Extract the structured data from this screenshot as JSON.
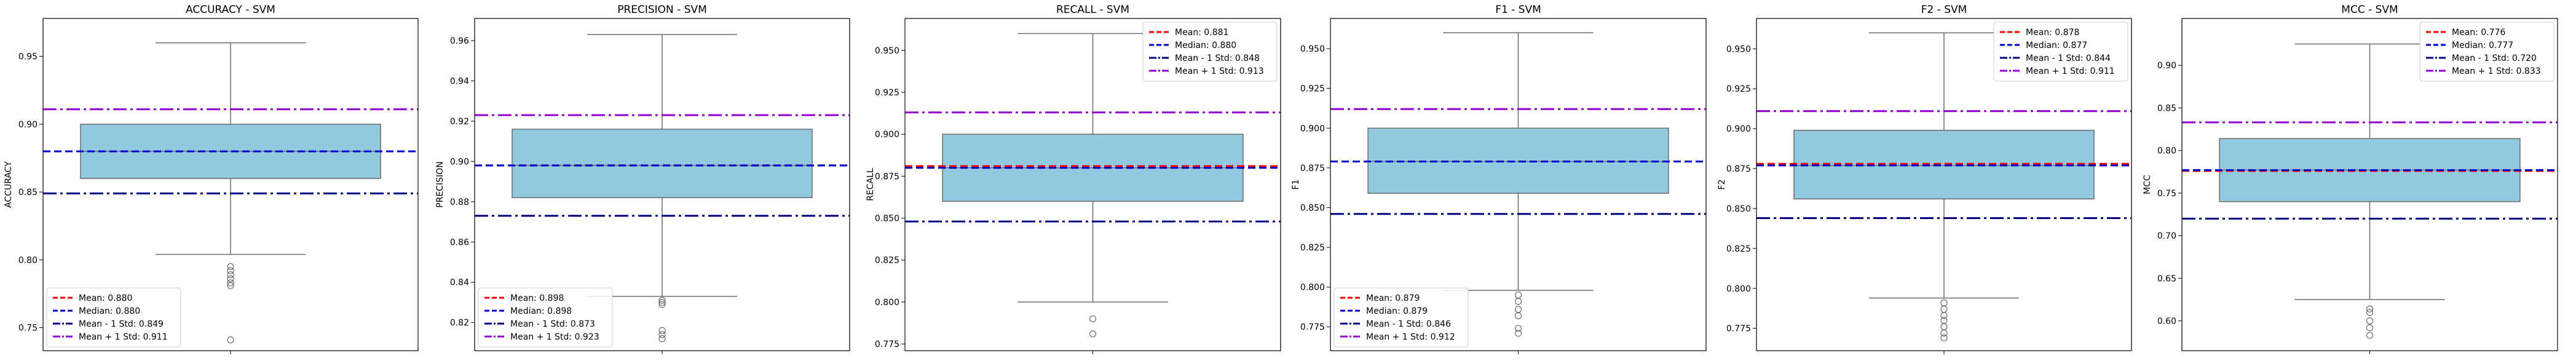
{
  "colors": {
    "box_fill": "#92c9e0",
    "box_edge": "#6b6b6b",
    "mean_line": "#ff0000",
    "median_line": "#0000cc",
    "minus_std_line": "#000080",
    "plus_std_line": "#9400d3",
    "axis": "#000000"
  },
  "chart_data": [
    {
      "type": "box",
      "title": "ACCURACY - SVM",
      "ylabel": "ACCURACY",
      "xlabel": "",
      "ylim": [
        0.733,
        0.978
      ],
      "yticks": [
        0.75,
        0.8,
        0.85,
        0.9,
        0.95
      ],
      "tick_labels": [
        "0.75",
        "0.80",
        "0.85",
        "0.90",
        "0.95"
      ],
      "box": {
        "whisker_low": 0.804,
        "q1": 0.86,
        "median": 0.88,
        "q3": 0.9,
        "whisker_high": 0.96
      },
      "outliers": [
        0.795,
        0.792,
        0.789,
        0.786,
        0.783,
        0.781,
        0.741
      ],
      "mean": 0.88,
      "median": 0.88,
      "mean_minus_std": 0.849,
      "mean_plus_std": 0.911,
      "legend_loc": "lower left",
      "legend": [
        "Mean: 0.880",
        "Median: 0.880",
        "Mean - 1 Std: 0.849",
        "Mean + 1 Std: 0.911"
      ]
    },
    {
      "type": "box",
      "title": "PRECISION - SVM",
      "ylabel": "PRECISION",
      "xlabel": "",
      "ylim": [
        0.806,
        0.971
      ],
      "yticks": [
        0.82,
        0.84,
        0.86,
        0.88,
        0.9,
        0.92,
        0.94,
        0.96
      ],
      "tick_labels": [
        "0.82",
        "0.84",
        "0.86",
        "0.88",
        "0.90",
        "0.92",
        "0.94",
        "0.96"
      ],
      "box": {
        "whisker_low": 0.833,
        "q1": 0.882,
        "median": 0.898,
        "q3": 0.916,
        "whisker_high": 0.963
      },
      "outliers": [
        0.831,
        0.83,
        0.829,
        0.816,
        0.814,
        0.812
      ],
      "mean": 0.898,
      "median": 0.898,
      "mean_minus_std": 0.873,
      "mean_plus_std": 0.923,
      "legend_loc": "lower left",
      "legend": [
        "Mean: 0.898",
        "Median: 0.898",
        "Mean - 1 Std: 0.873",
        "Mean + 1 Std: 0.923"
      ]
    },
    {
      "type": "box",
      "title": "RECALL - SVM",
      "ylabel": "RECALL",
      "xlabel": "",
      "ylim": [
        0.771,
        0.969
      ],
      "yticks": [
        0.775,
        0.8,
        0.825,
        0.85,
        0.875,
        0.9,
        0.925,
        0.95
      ],
      "tick_labels": [
        "0.775",
        "0.800",
        "0.825",
        "0.850",
        "0.875",
        "0.900",
        "0.925",
        "0.950"
      ],
      "box": {
        "whisker_low": 0.8,
        "q1": 0.86,
        "median": 0.88,
        "q3": 0.9,
        "whisker_high": 0.96
      },
      "outliers": [
        0.79,
        0.781
      ],
      "mean": 0.881,
      "median": 0.88,
      "mean_minus_std": 0.848,
      "mean_plus_std": 0.913,
      "legend_loc": "upper right",
      "legend": [
        "Mean: 0.881",
        "Median: 0.880",
        "Mean - 1 Std: 0.848",
        "Mean + 1 Std: 0.913"
      ]
    },
    {
      "type": "box",
      "title": "F1 - SVM",
      "ylabel": "F1",
      "xlabel": "",
      "ylim": [
        0.76,
        0.969
      ],
      "yticks": [
        0.775,
        0.8,
        0.825,
        0.85,
        0.875,
        0.9,
        0.925,
        0.95
      ],
      "tick_labels": [
        "0.775",
        "0.800",
        "0.825",
        "0.850",
        "0.875",
        "0.900",
        "0.925",
        "0.950"
      ],
      "box": {
        "whisker_low": 0.798,
        "q1": 0.859,
        "median": 0.879,
        "q3": 0.9,
        "whisker_high": 0.96
      },
      "outliers": [
        0.795,
        0.791,
        0.786,
        0.782,
        0.774,
        0.771
      ],
      "mean": 0.879,
      "median": 0.879,
      "mean_minus_std": 0.846,
      "mean_plus_std": 0.912,
      "legend_loc": "lower left",
      "legend": [
        "Mean: 0.879",
        "Median: 0.879",
        "Mean - 1 Std: 0.846",
        "Mean + 1 Std: 0.912"
      ]
    },
    {
      "type": "box",
      "title": "F2 - SVM",
      "ylabel": "F2",
      "xlabel": "",
      "ylim": [
        0.761,
        0.969
      ],
      "yticks": [
        0.775,
        0.8,
        0.825,
        0.85,
        0.875,
        0.9,
        0.925,
        0.95
      ],
      "tick_labels": [
        "0.775",
        "0.800",
        "0.825",
        "0.850",
        "0.875",
        "0.900",
        "0.925",
        "0.950"
      ],
      "box": {
        "whisker_low": 0.794,
        "q1": 0.856,
        "median": 0.877,
        "q3": 0.899,
        "whisker_high": 0.96
      },
      "outliers": [
        0.791,
        0.787,
        0.783,
        0.78,
        0.776,
        0.772,
        0.769
      ],
      "mean": 0.878,
      "median": 0.877,
      "mean_minus_std": 0.844,
      "mean_plus_std": 0.911,
      "legend_loc": "upper right",
      "legend": [
        "Mean: 0.878",
        "Median: 0.877",
        "Mean - 1 Std: 0.844",
        "Mean + 1 Std: 0.911"
      ]
    },
    {
      "type": "box",
      "title": "MCC - SVM",
      "ylabel": "MCC",
      "xlabel": "",
      "ylim": [
        0.565,
        0.955
      ],
      "yticks": [
        0.6,
        0.65,
        0.7,
        0.75,
        0.8,
        0.85,
        0.9
      ],
      "tick_labels": [
        "0.60",
        "0.65",
        "0.70",
        "0.75",
        "0.80",
        "0.85",
        "0.90"
      ],
      "box": {
        "whisker_low": 0.625,
        "q1": 0.74,
        "median": 0.777,
        "q3": 0.814,
        "whisker_high": 0.925
      },
      "outliers": [
        0.614,
        0.61,
        0.6,
        0.592,
        0.583
      ],
      "mean": 0.776,
      "median": 0.777,
      "mean_minus_std": 0.72,
      "mean_plus_std": 0.833,
      "legend_loc": "upper right",
      "legend": [
        "Mean: 0.776",
        "Median: 0.777",
        "Mean - 1 Std: 0.720",
        "Mean + 1 Std: 0.833"
      ]
    }
  ]
}
